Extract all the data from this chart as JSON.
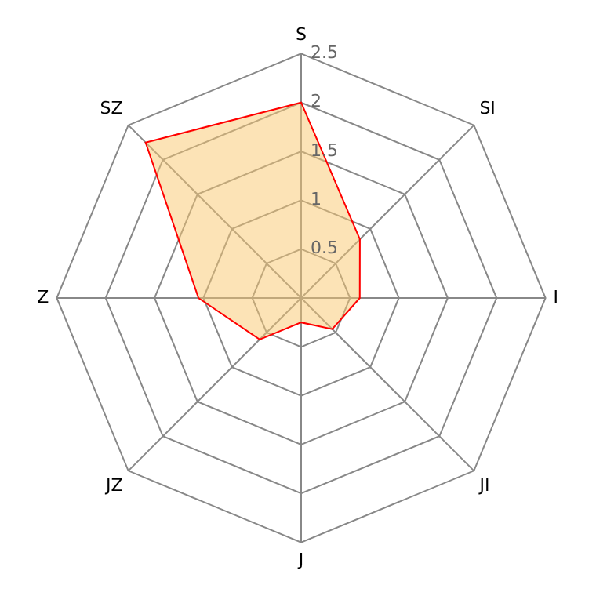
{
  "chart_data": {
    "type": "radar",
    "categories": [
      "S",
      "SI",
      "I",
      "JI",
      "J",
      "JZ",
      "Z",
      "SZ"
    ],
    "series": [
      {
        "color": "#ff0000",
        "values": [
          2.0,
          0.85,
          0.6,
          0.45,
          0.25,
          0.6,
          1.05,
          2.25
        ]
      }
    ],
    "ylim": [
      0,
      2.5
    ],
    "yticks": [
      0.5,
      1,
      1.5,
      2,
      2.5
    ],
    "grid": true,
    "legend": false,
    "marker": "none"
  }
}
